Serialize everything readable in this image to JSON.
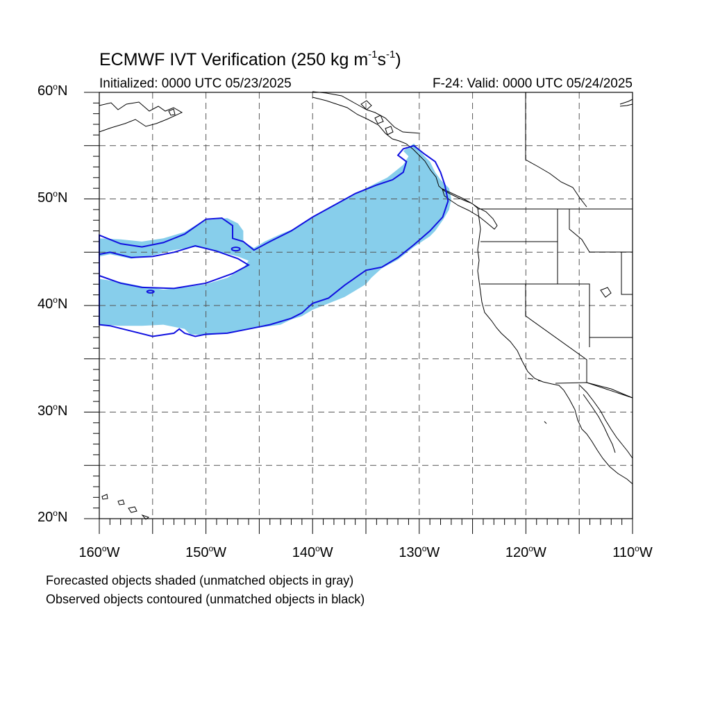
{
  "title": {
    "text_main": "ECMWF IVT Verification (250 kg m",
    "exp1": "-1",
    "text_mid": "s",
    "exp2": "-1",
    "text_end": ")"
  },
  "subtitle_left": "Initialized: 0000 UTC 05/23/2025",
  "subtitle_right": "F-24: Valid: 0000 UTC 05/24/2025",
  "map": {
    "lon_range": [
      -160,
      -110
    ],
    "lat_range": [
      20,
      60
    ],
    "projection": "cylindrical equidistant",
    "grid": "dashed every 5 degrees",
    "lat_labels": [
      {
        "value": 60,
        "text": "60",
        "suffix": "N"
      },
      {
        "value": 50,
        "text": "50",
        "suffix": "N"
      },
      {
        "value": 40,
        "text": "40",
        "suffix": "N"
      },
      {
        "value": 30,
        "text": "30",
        "suffix": "N"
      },
      {
        "value": 20,
        "text": "20",
        "suffix": "N"
      }
    ],
    "lon_labels": [
      {
        "value": -160,
        "text": "160",
        "suffix": "W"
      },
      {
        "value": -150,
        "text": "150",
        "suffix": "W"
      },
      {
        "value": -140,
        "text": "140",
        "suffix": "W"
      },
      {
        "value": -130,
        "text": "130",
        "suffix": "W"
      },
      {
        "value": -120,
        "text": "120",
        "suffix": "W"
      },
      {
        "value": -110,
        "text": "110",
        "suffix": "W"
      }
    ],
    "colors": {
      "forecast_fill": "#87ceeb",
      "observed_contour": "#1010e0",
      "coastline": "#000000",
      "grid": "#555555"
    },
    "forecast_object": {
      "outline": [
        [
          -160,
          46.3
        ],
        [
          -158,
          46.2
        ],
        [
          -156,
          46.0
        ],
        [
          -154,
          46.3
        ],
        [
          -152,
          46.9
        ],
        [
          -151,
          47.5
        ],
        [
          -150.2,
          48.0
        ],
        [
          -149,
          48.1
        ],
        [
          -148,
          48.2
        ],
        [
          -147,
          47.7
        ],
        [
          -146.5,
          47.0
        ],
        [
          -146.5,
          46.0
        ],
        [
          -145.5,
          45.4
        ],
        [
          -144.5,
          46.0
        ],
        [
          -143,
          46.7
        ],
        [
          -141.5,
          47.3
        ],
        [
          -140,
          48.3
        ],
        [
          -138.5,
          49.2
        ],
        [
          -137,
          50.0
        ],
        [
          -135,
          51.0
        ],
        [
          -133,
          52.0
        ],
        [
          -131.5,
          53.2
        ],
        [
          -131,
          54.0
        ],
        [
          -131.5,
          54.5
        ],
        [
          -130.5,
          55.2
        ],
        [
          -129.5,
          54.0
        ],
        [
          -129,
          53.5
        ],
        [
          -128.5,
          52.5
        ],
        [
          -128,
          51.8
        ],
        [
          -127.2,
          51.0
        ],
        [
          -127,
          50.0
        ],
        [
          -127.2,
          49.0
        ],
        [
          -127.8,
          48.0
        ],
        [
          -128.5,
          47.0
        ],
        [
          -129,
          46.5
        ],
        [
          -130.5,
          45.5
        ],
        [
          -132,
          44.3
        ],
        [
          -133.5,
          43.5
        ],
        [
          -134.5,
          42.6
        ],
        [
          -135,
          42.0
        ],
        [
          -137,
          40.8
        ],
        [
          -138,
          40.4
        ],
        [
          -139,
          40.0
        ],
        [
          -140,
          39.6
        ],
        [
          -141,
          39.0
        ],
        [
          -142,
          38.7
        ],
        [
          -143,
          38.2
        ],
        [
          -144.5,
          38.0
        ],
        [
          -146,
          37.8
        ],
        [
          -148,
          37.4
        ],
        [
          -150,
          37.2
        ],
        [
          -151.5,
          37.3
        ],
        [
          -152,
          37.8
        ],
        [
          -154,
          38.2
        ],
        [
          -156,
          38.1
        ],
        [
          -158,
          38.1
        ],
        [
          -160,
          38.2
        ]
      ],
      "hole": [
        [
          -160,
          42.5
        ],
        [
          -158,
          42.2
        ],
        [
          -156,
          41.8
        ],
        [
          -154,
          41.5
        ],
        [
          -152,
          41.7
        ],
        [
          -150,
          42.0
        ],
        [
          -148,
          42.6
        ],
        [
          -146.5,
          43.5
        ],
        [
          -146,
          44.2
        ],
        [
          -147,
          44.6
        ],
        [
          -149,
          45.1
        ],
        [
          -151,
          45.5
        ],
        [
          -153,
          45.2
        ],
        [
          -155,
          44.7
        ],
        [
          -157,
          44.4
        ],
        [
          -159,
          44.8
        ],
        [
          -160,
          44.6
        ]
      ]
    },
    "observed_object": {
      "outline": [
        [
          -160,
          46.6
        ],
        [
          -158,
          45.8
        ],
        [
          -156,
          45.5
        ],
        [
          -154,
          45.9
        ],
        [
          -152,
          46.7
        ],
        [
          -151,
          47.4
        ],
        [
          -150,
          48.1
        ],
        [
          -148.5,
          48.2
        ],
        [
          -147.5,
          47.5
        ],
        [
          -147.5,
          46.3
        ],
        [
          -146.5,
          46.0
        ],
        [
          -145.5,
          45.2
        ],
        [
          -144,
          46.0
        ],
        [
          -142,
          47.0
        ],
        [
          -140,
          48.3
        ],
        [
          -138,
          49.4
        ],
        [
          -136,
          50.5
        ],
        [
          -134,
          51.3
        ],
        [
          -132.5,
          51.8
        ],
        [
          -131.5,
          52.5
        ],
        [
          -131.2,
          53.5
        ],
        [
          -132,
          54.1
        ],
        [
          -131.5,
          54.7
        ],
        [
          -130.5,
          55.0
        ],
        [
          -129.5,
          54.2
        ],
        [
          -128.5,
          53.5
        ],
        [
          -128,
          52.5
        ],
        [
          -127.6,
          51.3
        ],
        [
          -127.3,
          49.8
        ],
        [
          -127.8,
          48.3
        ],
        [
          -129,
          47.0
        ],
        [
          -130.5,
          45.7
        ],
        [
          -132,
          44.5
        ],
        [
          -133.5,
          43.6
        ],
        [
          -135,
          43.3
        ],
        [
          -136,
          42.6
        ],
        [
          -137,
          41.9
        ],
        [
          -138.5,
          40.7
        ],
        [
          -140,
          40.2
        ],
        [
          -141,
          39.3
        ],
        [
          -142,
          38.8
        ],
        [
          -144,
          38.2
        ],
        [
          -146,
          37.8
        ],
        [
          -148,
          37.4
        ],
        [
          -150,
          37.3
        ],
        [
          -151,
          37.1
        ],
        [
          -152,
          37.4
        ],
        [
          -152.5,
          37.8
        ],
        [
          -153,
          37.4
        ],
        [
          -155,
          37.1
        ],
        [
          -157,
          37.6
        ],
        [
          -159,
          38.1
        ],
        [
          -160,
          38.2
        ]
      ],
      "hole": [
        [
          -160,
          42.8
        ],
        [
          -158,
          42.1
        ],
        [
          -156,
          41.7
        ],
        [
          -153,
          41.6
        ],
        [
          -150,
          42.1
        ],
        [
          -147.5,
          43.0
        ],
        [
          -146,
          43.8
        ],
        [
          -147,
          44.4
        ],
        [
          -149,
          45.1
        ],
        [
          -151,
          45.6
        ],
        [
          -153,
          45.0
        ],
        [
          -155,
          44.6
        ],
        [
          -157,
          44.5
        ],
        [
          -159,
          45.0
        ],
        [
          -160,
          44.8
        ]
      ]
    }
  },
  "footnotes": [
    "Forecasted objects shaded (unmatched objects in gray)",
    "Observed objects contoured (unmatched objects in black)"
  ]
}
